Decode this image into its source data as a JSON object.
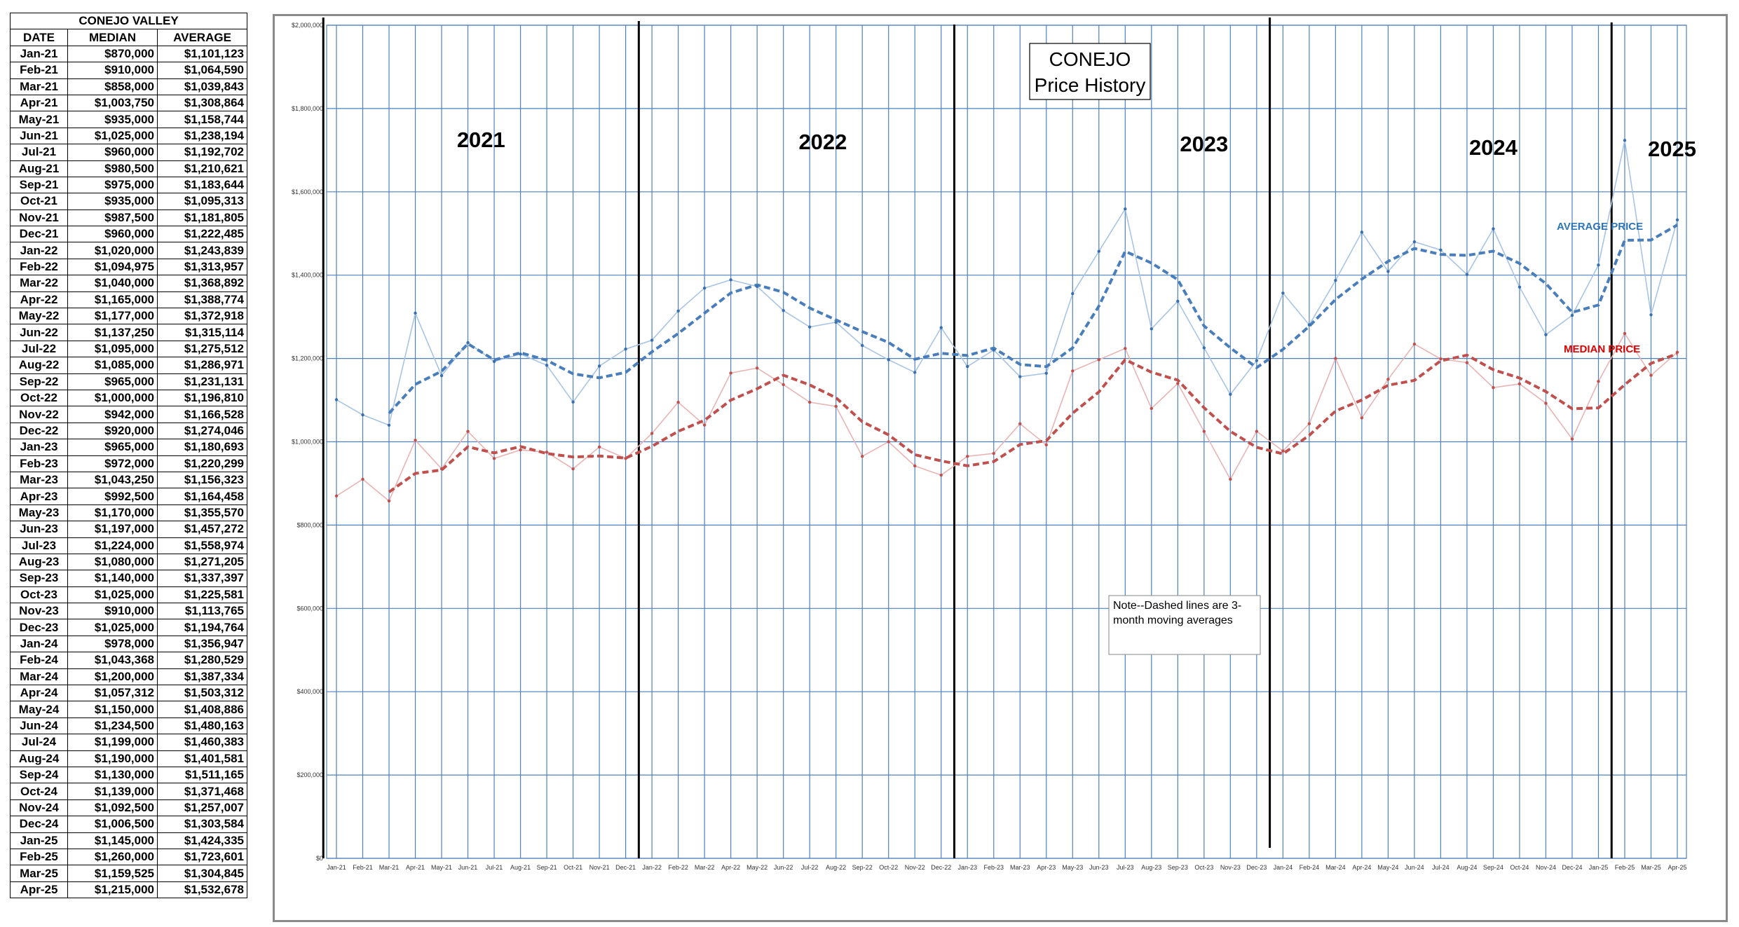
{
  "table": {
    "title": "CONEJO VALLEY",
    "headers": [
      "DATE",
      "MEDIAN",
      "AVERAGE"
    ],
    "rows": [
      [
        "Jan-21",
        "$870,000",
        "$1,101,123"
      ],
      [
        "Feb-21",
        "$910,000",
        "$1,064,590"
      ],
      [
        "Mar-21",
        "$858,000",
        "$1,039,843"
      ],
      [
        "Apr-21",
        "$1,003,750",
        "$1,308,864"
      ],
      [
        "May-21",
        "$935,000",
        "$1,158,744"
      ],
      [
        "Jun-21",
        "$1,025,000",
        "$1,238,194"
      ],
      [
        "Jul-21",
        "$960,000",
        "$1,192,702"
      ],
      [
        "Aug-21",
        "$980,500",
        "$1,210,621"
      ],
      [
        "Sep-21",
        "$975,000",
        "$1,183,644"
      ],
      [
        "Oct-21",
        "$935,000",
        "$1,095,313"
      ],
      [
        "Nov-21",
        "$987,500",
        "$1,181,805"
      ],
      [
        "Dec-21",
        "$960,000",
        "$1,222,485"
      ],
      [
        "Jan-22",
        "$1,020,000",
        "$1,243,839"
      ],
      [
        "Feb-22",
        "$1,094,975",
        "$1,313,957"
      ],
      [
        "Mar-22",
        "$1,040,000",
        "$1,368,892"
      ],
      [
        "Apr-22",
        "$1,165,000",
        "$1,388,774"
      ],
      [
        "May-22",
        "$1,177,000",
        "$1,372,918"
      ],
      [
        "Jun-22",
        "$1,137,250",
        "$1,315,114"
      ],
      [
        "Jul-22",
        "$1,095,000",
        "$1,275,512"
      ],
      [
        "Aug-22",
        "$1,085,000",
        "$1,286,971"
      ],
      [
        "Sep-22",
        "$965,000",
        "$1,231,131"
      ],
      [
        "Oct-22",
        "$1,000,000",
        "$1,196,810"
      ],
      [
        "Nov-22",
        "$942,000",
        "$1,166,528"
      ],
      [
        "Dec-22",
        "$920,000",
        "$1,274,046"
      ],
      [
        "Jan-23",
        "$965,000",
        "$1,180,693"
      ],
      [
        "Feb-23",
        "$972,000",
        "$1,220,299"
      ],
      [
        "Mar-23",
        "$1,043,250",
        "$1,156,323"
      ],
      [
        "Apr-23",
        "$992,500",
        "$1,164,458"
      ],
      [
        "May-23",
        "$1,170,000",
        "$1,355,570"
      ],
      [
        "Jun-23",
        "$1,197,000",
        "$1,457,272"
      ],
      [
        "Jul-23",
        "$1,224,000",
        "$1,558,974"
      ],
      [
        "Aug-23",
        "$1,080,000",
        "$1,271,205"
      ],
      [
        "Sep-23",
        "$1,140,000",
        "$1,337,397"
      ],
      [
        "Oct-23",
        "$1,025,000",
        "$1,225,581"
      ],
      [
        "Nov-23",
        "$910,000",
        "$1,113,765"
      ],
      [
        "Dec-23",
        "$1,025,000",
        "$1,194,764"
      ],
      [
        "Jan-24",
        "$978,000",
        "$1,356,947"
      ],
      [
        "Feb-24",
        "$1,043,368",
        "$1,280,529"
      ],
      [
        "Mar-24",
        "$1,200,000",
        "$1,387,334"
      ],
      [
        "Apr-24",
        "$1,057,312",
        "$1,503,312"
      ],
      [
        "May-24",
        "$1,150,000",
        "$1,408,886"
      ],
      [
        "Jun-24",
        "$1,234,500",
        "$1,480,163"
      ],
      [
        "Jul-24",
        "$1,199,000",
        "$1,460,383"
      ],
      [
        "Aug-24",
        "$1,190,000",
        "$1,401,581"
      ],
      [
        "Sep-24",
        "$1,130,000",
        "$1,511,165"
      ],
      [
        "Oct-24",
        "$1,139,000",
        "$1,371,468"
      ],
      [
        "Nov-24",
        "$1,092,500",
        "$1,257,007"
      ],
      [
        "Dec-24",
        "$1,006,500",
        "$1,303,584"
      ],
      [
        "Jan-25",
        "$1,145,000",
        "$1,424,335"
      ],
      [
        "Feb-25",
        "$1,260,000",
        "$1,723,601"
      ],
      [
        "Mar-25",
        "$1,159,525",
        "$1,304,845"
      ],
      [
        "Apr-25",
        "$1,215,000",
        "$1,532,678"
      ]
    ]
  },
  "chart_data": {
    "type": "line",
    "title_line1": "CONEJO",
    "title_line2": "Price History",
    "note": "Note--Dashed lines are 3-month moving averages",
    "x": [
      "Jan-21",
      "Feb-21",
      "Mar-21",
      "Apr-21",
      "May-21",
      "Jun-21",
      "Jul-21",
      "Aug-21",
      "Sep-21",
      "Oct-21",
      "Nov-21",
      "Dec-21",
      "Jan-22",
      "Feb-22",
      "Mar-22",
      "Apr-22",
      "May-22",
      "Jun-22",
      "Jul-22",
      "Aug-22",
      "Sep-22",
      "Oct-22",
      "Nov-22",
      "Dec-22",
      "Jan-23",
      "Feb-23",
      "Mar-23",
      "Apr-23",
      "May-23",
      "Jun-23",
      "Jul-23",
      "Aug-23",
      "Sep-23",
      "Oct-23",
      "Nov-23",
      "Dec-23",
      "Jan-24",
      "Feb-24",
      "Mar-24",
      "Apr-24",
      "May-24",
      "Jun-24",
      "Jul-24",
      "Aug-24",
      "Sep-24",
      "Oct-24",
      "Nov-24",
      "Dec-24",
      "Jan-25",
      "Feb-25",
      "Mar-25",
      "Apr-25"
    ],
    "ylim": [
      0,
      2000000
    ],
    "yticks": [
      "$0",
      "$200,000",
      "$400,000",
      "$600,000",
      "$800,000",
      "$1,000,000",
      "$1,200,000",
      "$1,400,000",
      "$1,600,000",
      "$1,800,000",
      "$2,000,000"
    ],
    "year_labels": [
      "2021",
      "2022",
      "2023",
      "2024",
      "2025"
    ],
    "grid": true,
    "series": [
      {
        "name": "AVERAGE PRICE",
        "color": "#2e75b6",
        "values": [
          1101123,
          1064590,
          1039843,
          1308864,
          1158744,
          1238194,
          1192702,
          1210621,
          1183644,
          1095313,
          1181805,
          1222485,
          1243839,
          1313957,
          1368892,
          1388774,
          1372918,
          1315114,
          1275512,
          1286971,
          1231131,
          1196810,
          1166528,
          1274046,
          1180693,
          1220299,
          1156323,
          1164458,
          1355570,
          1457272,
          1558974,
          1271205,
          1337397,
          1225581,
          1113765,
          1194764,
          1356947,
          1280529,
          1387334,
          1503312,
          1408886,
          1480163,
          1460383,
          1401581,
          1511165,
          1371468,
          1257007,
          1303584,
          1424335,
          1723601,
          1304845,
          1532678
        ]
      },
      {
        "name": "MEDIAN PRICE",
        "color": "#c00000",
        "values": [
          870000,
          910000,
          858000,
          1003750,
          935000,
          1025000,
          960000,
          980500,
          975000,
          935000,
          987500,
          960000,
          1020000,
          1094975,
          1040000,
          1165000,
          1177000,
          1137250,
          1095000,
          1085000,
          965000,
          1000000,
          942000,
          920000,
          965000,
          972000,
          1043250,
          992500,
          1170000,
          1197000,
          1224000,
          1080000,
          1140000,
          1025000,
          910000,
          1025000,
          978000,
          1043368,
          1200000,
          1057312,
          1150000,
          1234500,
          1199000,
          1190000,
          1130000,
          1139000,
          1092500,
          1006500,
          1145000,
          1260000,
          1159525,
          1215000
        ]
      }
    ]
  }
}
